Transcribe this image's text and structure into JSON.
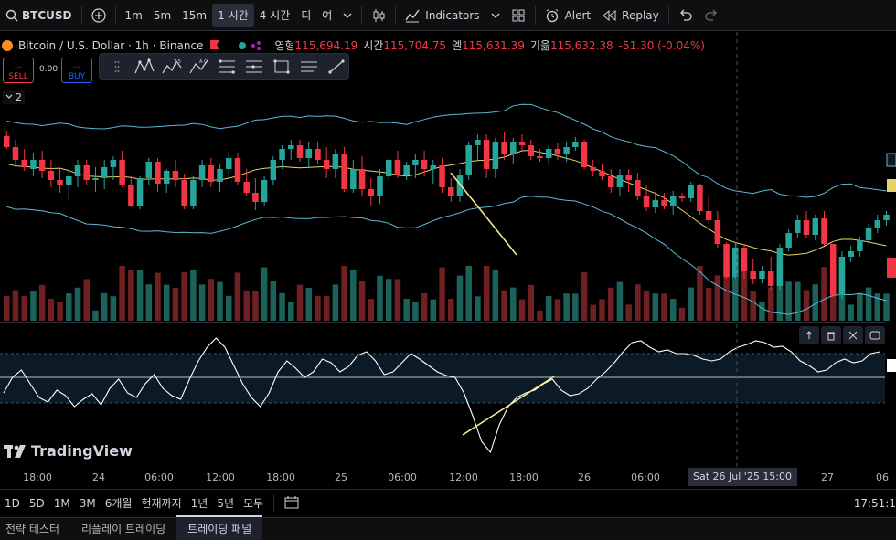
{
  "toolbar": {
    "symbol": "BTCUSD",
    "intervals": [
      "1m",
      "5m",
      "15m"
    ],
    "interval_active": "1 시간",
    "interval_4h": "4 시간",
    "extra_d": "디",
    "extra_y": "여",
    "indicators_label": "Indicators",
    "alert_label": "Alert",
    "replay_label": "Replay"
  },
  "legend": {
    "title": "Bitcoin / U.S. Dollar · 1h · Binance",
    "open_label": "영형",
    "open": "115,694.19",
    "high_label": "시간",
    "high": "115,704.75",
    "low_label": "엘",
    "low": "115,631.39",
    "close_label": "기읆",
    "close": "115,632.38",
    "change": "-51.30 (-0.04%)"
  },
  "trade": {
    "sell_label": "SELL",
    "buy_label": "BUY",
    "dots": "...",
    "spread": "0.00"
  },
  "collapse_count": "2",
  "logo": "TradingView",
  "time_axis": {
    "ticks": [
      "18:00",
      "24",
      "06:00",
      "12:00",
      "18:00",
      "25",
      "06:00",
      "12:00",
      "18:00",
      "26",
      "06:00",
      "27",
      "06"
    ],
    "crosshair": "Sat 26 Jul '25   15:00"
  },
  "ranges": [
    "1D",
    "5D",
    "1M",
    "3M",
    "6개월",
    "현재까지",
    "1년",
    "5년",
    "모두"
  ],
  "clock": "17:51:1",
  "bottom_tabs": [
    "전략 테스터",
    "리플레이 트레이딩",
    "트레이딩 패널"
  ],
  "colors": {
    "up": "#26a69a",
    "down": "#f23645",
    "bb": "#5fb7d4",
    "ma": "#e8d36a",
    "osc": "#ffffff",
    "trendline": "#f4ea8a"
  },
  "chart_data": {
    "type": "candlestick",
    "series_count": 100,
    "price_bars": [
      {
        "o": 114,
        "h": 108,
        "l": 128,
        "c": 126
      },
      {
        "o": 126,
        "h": 118,
        "l": 148,
        "c": 140
      },
      {
        "o": 140,
        "h": 128,
        "l": 152,
        "c": 148
      },
      {
        "o": 150,
        "h": 132,
        "l": 158,
        "c": 140
      },
      {
        "o": 140,
        "h": 130,
        "l": 160,
        "c": 152
      },
      {
        "o": 152,
        "h": 140,
        "l": 170,
        "c": 162
      },
      {
        "o": 162,
        "h": 150,
        "l": 176,
        "c": 168
      },
      {
        "o": 168,
        "h": 150,
        "l": 185,
        "c": 158
      },
      {
        "o": 158,
        "h": 140,
        "l": 170,
        "c": 146
      },
      {
        "o": 146,
        "h": 140,
        "l": 168,
        "c": 162
      },
      {
        "o": 162,
        "h": 148,
        "l": 175,
        "c": 160
      },
      {
        "o": 160,
        "h": 140,
        "l": 172,
        "c": 148
      },
      {
        "o": 148,
        "h": 136,
        "l": 162,
        "c": 140
      },
      {
        "o": 140,
        "h": 130,
        "l": 170,
        "c": 168
      },
      {
        "o": 168,
        "h": 158,
        "l": 192,
        "c": 190
      },
      {
        "o": 190,
        "h": 158,
        "l": 194,
        "c": 160
      },
      {
        "o": 160,
        "h": 138,
        "l": 168,
        "c": 142
      },
      {
        "o": 142,
        "h": 138,
        "l": 175,
        "c": 166
      },
      {
        "o": 166,
        "h": 150,
        "l": 176,
        "c": 152
      },
      {
        "o": 152,
        "h": 140,
        "l": 170,
        "c": 162
      },
      {
        "o": 162,
        "h": 155,
        "l": 194,
        "c": 190
      },
      {
        "o": 190,
        "h": 158,
        "l": 194,
        "c": 162
      },
      {
        "o": 162,
        "h": 140,
        "l": 170,
        "c": 146
      },
      {
        "o": 146,
        "h": 138,
        "l": 170,
        "c": 164
      },
      {
        "o": 164,
        "h": 145,
        "l": 175,
        "c": 150
      },
      {
        "o": 150,
        "h": 130,
        "l": 160,
        "c": 138
      },
      {
        "o": 138,
        "h": 132,
        "l": 168,
        "c": 164
      },
      {
        "o": 164,
        "h": 150,
        "l": 180,
        "c": 176
      },
      {
        "o": 176,
        "h": 160,
        "l": 195,
        "c": 186
      },
      {
        "o": 186,
        "h": 158,
        "l": 190,
        "c": 162
      },
      {
        "o": 162,
        "h": 136,
        "l": 168,
        "c": 140
      },
      {
        "o": 140,
        "h": 124,
        "l": 150,
        "c": 128
      },
      {
        "o": 128,
        "h": 118,
        "l": 140,
        "c": 124
      },
      {
        "o": 124,
        "h": 118,
        "l": 142,
        "c": 138
      },
      {
        "o": 138,
        "h": 120,
        "l": 148,
        "c": 128
      },
      {
        "o": 128,
        "h": 120,
        "l": 145,
        "c": 140
      },
      {
        "o": 140,
        "h": 126,
        "l": 160,
        "c": 150
      },
      {
        "o": 150,
        "h": 128,
        "l": 160,
        "c": 134
      },
      {
        "o": 134,
        "h": 126,
        "l": 175,
        "c": 172
      },
      {
        "o": 172,
        "h": 140,
        "l": 176,
        "c": 150
      },
      {
        "o": 150,
        "h": 136,
        "l": 180,
        "c": 172
      },
      {
        "o": 172,
        "h": 160,
        "l": 190,
        "c": 180
      },
      {
        "o": 180,
        "h": 150,
        "l": 188,
        "c": 158
      },
      {
        "o": 158,
        "h": 138,
        "l": 162,
        "c": 140
      },
      {
        "o": 140,
        "h": 130,
        "l": 160,
        "c": 156
      },
      {
        "o": 156,
        "h": 142,
        "l": 162,
        "c": 146
      },
      {
        "o": 146,
        "h": 134,
        "l": 160,
        "c": 140
      },
      {
        "o": 140,
        "h": 130,
        "l": 158,
        "c": 150
      },
      {
        "o": 150,
        "h": 140,
        "l": 166,
        "c": 146
      },
      {
        "o": 146,
        "h": 138,
        "l": 176,
        "c": 170
      },
      {
        "o": 170,
        "h": 160,
        "l": 186,
        "c": 180
      },
      {
        "o": 180,
        "h": 150,
        "l": 186,
        "c": 156
      },
      {
        "o": 156,
        "h": 120,
        "l": 162,
        "c": 124
      },
      {
        "o": 124,
        "h": 112,
        "l": 140,
        "c": 118
      },
      {
        "o": 118,
        "h": 112,
        "l": 160,
        "c": 150
      },
      {
        "o": 150,
        "h": 116,
        "l": 160,
        "c": 120
      },
      {
        "o": 120,
        "h": 110,
        "l": 140,
        "c": 134
      },
      {
        "o": 134,
        "h": 116,
        "l": 145,
        "c": 120
      },
      {
        "o": 120,
        "h": 112,
        "l": 130,
        "c": 124
      },
      {
        "o": 124,
        "h": 118,
        "l": 140,
        "c": 136
      },
      {
        "o": 136,
        "h": 128,
        "l": 142,
        "c": 138
      },
      {
        "o": 138,
        "h": 124,
        "l": 146,
        "c": 128
      },
      {
        "o": 128,
        "h": 122,
        "l": 140,
        "c": 134
      },
      {
        "o": 134,
        "h": 120,
        "l": 142,
        "c": 126
      },
      {
        "o": 126,
        "h": 115,
        "l": 130,
        "c": 120
      },
      {
        "o": 120,
        "h": 118,
        "l": 150,
        "c": 148
      },
      {
        "o": 148,
        "h": 140,
        "l": 158,
        "c": 152
      },
      {
        "o": 152,
        "h": 145,
        "l": 162,
        "c": 158
      },
      {
        "o": 158,
        "h": 150,
        "l": 176,
        "c": 170
      },
      {
        "o": 170,
        "h": 150,
        "l": 180,
        "c": 156
      },
      {
        "o": 156,
        "h": 150,
        "l": 175,
        "c": 162
      },
      {
        "o": 162,
        "h": 154,
        "l": 184,
        "c": 180
      },
      {
        "o": 180,
        "h": 168,
        "l": 196,
        "c": 192
      },
      {
        "o": 192,
        "h": 175,
        "l": 198,
        "c": 184
      },
      {
        "o": 184,
        "h": 176,
        "l": 194,
        "c": 190
      },
      {
        "o": 190,
        "h": 174,
        "l": 200,
        "c": 180
      },
      {
        "o": 180,
        "h": 176,
        "l": 186,
        "c": 182
      },
      {
        "o": 182,
        "h": 164,
        "l": 186,
        "c": 168
      },
      {
        "o": 168,
        "h": 166,
        "l": 200,
        "c": 196
      },
      {
        "o": 196,
        "h": 180,
        "l": 210,
        "c": 206
      },
      {
        "o": 206,
        "h": 196,
        "l": 236,
        "c": 232
      },
      {
        "o": 232,
        "h": 230,
        "l": 270,
        "c": 268
      },
      {
        "o": 268,
        "h": 230,
        "l": 270,
        "c": 236
      },
      {
        "o": 236,
        "h": 232,
        "l": 270,
        "c": 262
      },
      {
        "o": 262,
        "h": 248,
        "l": 276,
        "c": 270
      },
      {
        "o": 270,
        "h": 256,
        "l": 275,
        "c": 262
      },
      {
        "o": 262,
        "h": 246,
        "l": 282,
        "c": 278
      },
      {
        "o": 278,
        "h": 232,
        "l": 282,
        "c": 236
      },
      {
        "o": 236,
        "h": 216,
        "l": 240,
        "c": 220
      },
      {
        "o": 220,
        "h": 200,
        "l": 226,
        "c": 206
      },
      {
        "o": 206,
        "h": 196,
        "l": 226,
        "c": 222
      },
      {
        "o": 222,
        "h": 200,
        "l": 228,
        "c": 204
      },
      {
        "o": 204,
        "h": 196,
        "l": 234,
        "c": 232
      },
      {
        "o": 232,
        "h": 232,
        "l": 290,
        "c": 288
      },
      {
        "o": 288,
        "h": 240,
        "l": 292,
        "c": 246
      },
      {
        "o": 246,
        "h": 234,
        "l": 252,
        "c": 240
      },
      {
        "o": 240,
        "h": 224,
        "l": 246,
        "c": 228
      },
      {
        "o": 228,
        "h": 210,
        "l": 232,
        "c": 214
      },
      {
        "o": 214,
        "h": 200,
        "l": 220,
        "c": 206
      },
      {
        "o": 206,
        "h": 196,
        "l": 212,
        "c": 200
      }
    ]
  }
}
